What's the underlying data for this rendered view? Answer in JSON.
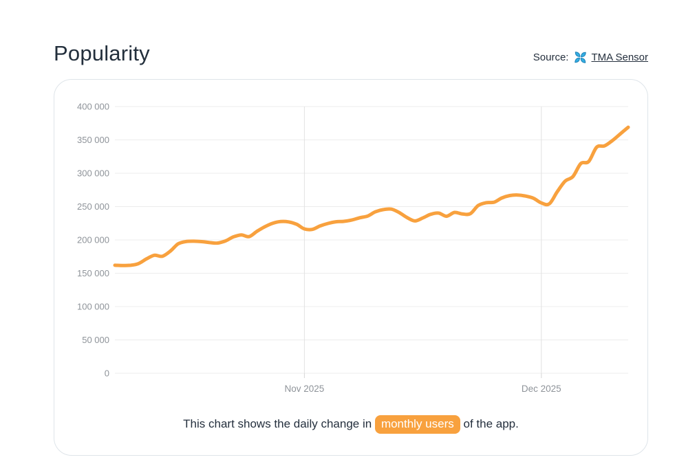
{
  "page": {
    "title": "Popularity",
    "source": {
      "label": "Source:",
      "link_text": "TMA Sensor",
      "icon": "tma-pinwheel-icon"
    }
  },
  "caption": {
    "prefix": "This chart shows the daily change in",
    "highlight": "monthly users",
    "suffix": "of the app."
  },
  "colors": {
    "line": "#F8A13E",
    "highlight_bg": "#F8A13E",
    "highlight_text": "#FFFFFF",
    "title_text": "#232F3C",
    "axis_text": "#8E9399",
    "gridline": "#ECECEC",
    "vertical_gridline": "#E2E2E2",
    "tick_mark": "#D6D6D6",
    "card_border": "#DEE4E9",
    "source_icon_cyan": "#35AEE2",
    "source_icon_dark": "#1B7FB5"
  },
  "chart_data": {
    "type": "line",
    "title": "",
    "xlabel": "",
    "ylabel": "",
    "ylim": [
      0,
      400000
    ],
    "grid": true,
    "legend": false,
    "y_ticks": [
      {
        "value": 400000,
        "label": "400 000"
      },
      {
        "value": 350000,
        "label": "350 000"
      },
      {
        "value": 300000,
        "label": "300 000"
      },
      {
        "value": 250000,
        "label": "250 000"
      },
      {
        "value": 200000,
        "label": "200 000"
      },
      {
        "value": 150000,
        "label": "150 000"
      },
      {
        "value": 100000,
        "label": "100 000"
      },
      {
        "value": 50000,
        "label": "50 000"
      },
      {
        "value": 0,
        "label": "0"
      }
    ],
    "x_ticks": [
      "Nov 2025",
      "Dec 2025"
    ],
    "x_tick_indices": [
      24,
      54
    ],
    "series": [
      {
        "name": "monthly users",
        "color": "#F8A13E",
        "points": [
          [
            "2025-10-08",
            162000
          ],
          [
            "2025-10-09",
            161500
          ],
          [
            "2025-10-10",
            162000
          ],
          [
            "2025-10-11",
            164500
          ],
          [
            "2025-10-12",
            171500
          ],
          [
            "2025-10-13",
            177000
          ],
          [
            "2025-10-14",
            175500
          ],
          [
            "2025-10-15",
            183000
          ],
          [
            "2025-10-16",
            194000
          ],
          [
            "2025-10-17",
            197500
          ],
          [
            "2025-10-18",
            198000
          ],
          [
            "2025-10-19",
            197400
          ],
          [
            "2025-10-20",
            196000
          ],
          [
            "2025-10-21",
            195300
          ],
          [
            "2025-10-22",
            198500
          ],
          [
            "2025-10-23",
            204500
          ],
          [
            "2025-10-24",
            207500
          ],
          [
            "2025-10-25",
            205000
          ],
          [
            "2025-10-26",
            213000
          ],
          [
            "2025-10-27",
            219800
          ],
          [
            "2025-10-28",
            225000
          ],
          [
            "2025-10-29",
            227500
          ],
          [
            "2025-10-30",
            227000
          ],
          [
            "2025-10-31",
            223500
          ],
          [
            "2025-11-01",
            216500
          ],
          [
            "2025-11-02",
            215800
          ],
          [
            "2025-11-03",
            221000
          ],
          [
            "2025-11-04",
            224700
          ],
          [
            "2025-11-05",
            227200
          ],
          [
            "2025-11-06",
            227800
          ],
          [
            "2025-11-07",
            229800
          ],
          [
            "2025-11-08",
            233200
          ],
          [
            "2025-11-09",
            235800
          ],
          [
            "2025-11-10",
            242200
          ],
          [
            "2025-11-11",
            245500
          ],
          [
            "2025-11-12",
            246200
          ],
          [
            "2025-11-13",
            241000
          ],
          [
            "2025-11-14",
            233500
          ],
          [
            "2025-11-15",
            228500
          ],
          [
            "2025-11-16",
            233000
          ],
          [
            "2025-11-17",
            238500
          ],
          [
            "2025-11-18",
            240200
          ],
          [
            "2025-11-19",
            235500
          ],
          [
            "2025-11-20",
            241200
          ],
          [
            "2025-11-21",
            239000
          ],
          [
            "2025-11-22",
            239300
          ],
          [
            "2025-11-23",
            251500
          ],
          [
            "2025-11-24",
            255800
          ],
          [
            "2025-11-25",
            256500
          ],
          [
            "2025-11-26",
            262900
          ],
          [
            "2025-11-27",
            266500
          ],
          [
            "2025-11-28",
            267300
          ],
          [
            "2025-11-29",
            265800
          ],
          [
            "2025-11-30",
            262500
          ],
          [
            "2025-12-01",
            255500
          ],
          [
            "2025-12-02",
            254000
          ],
          [
            "2025-12-03",
            272000
          ],
          [
            "2025-12-04",
            288000
          ],
          [
            "2025-12-05",
            295000
          ],
          [
            "2025-12-06",
            314500
          ],
          [
            "2025-12-07",
            317500
          ],
          [
            "2025-12-08",
            339000
          ],
          [
            "2025-12-09",
            341000
          ],
          [
            "2025-12-10",
            349000
          ],
          [
            "2025-12-11",
            359000
          ],
          [
            "2025-12-12",
            369000
          ]
        ]
      }
    ]
  }
}
